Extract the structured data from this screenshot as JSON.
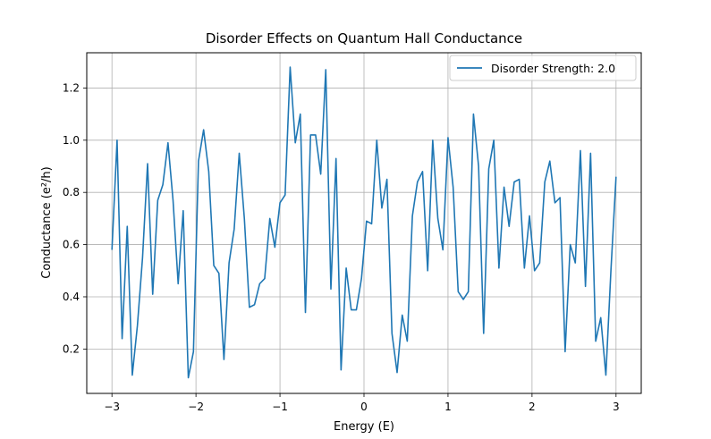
{
  "chart_data": {
    "type": "line",
    "title": "Disorder Effects on Quantum Hall Conductance",
    "xlabel": "Energy (E)",
    "ylabel": "Conductance (e²/h)",
    "xlim": [
      -3.3,
      3.3
    ],
    "ylim": [
      0.03,
      1.335
    ],
    "xticks": [
      -3,
      -2,
      -1,
      0,
      1,
      2,
      3
    ],
    "xtick_labels": [
      "−3",
      "−2",
      "−1",
      "0",
      "1",
      "2",
      "3"
    ],
    "yticks": [
      0.2,
      0.4,
      0.6,
      0.8,
      1.0,
      1.2
    ],
    "ytick_labels": [
      "0.2",
      "0.4",
      "0.6",
      "0.8",
      "1.0",
      "1.2"
    ],
    "grid": true,
    "legend_position": "top-right",
    "colors": {
      "series": "#1f77b4",
      "grid": "#b0b0b0",
      "axes": "#000000"
    },
    "series": [
      {
        "name": "Disorder Strength: 2.0",
        "x": [
          -3.0,
          -2.939,
          -2.879,
          -2.818,
          -2.758,
          -2.697,
          -2.636,
          -2.576,
          -2.515,
          -2.455,
          -2.394,
          -2.333,
          -2.273,
          -2.212,
          -2.152,
          -2.091,
          -2.03,
          -1.97,
          -1.909,
          -1.848,
          -1.788,
          -1.727,
          -1.667,
          -1.606,
          -1.545,
          -1.485,
          -1.424,
          -1.364,
          -1.303,
          -1.242,
          -1.182,
          -1.121,
          -1.061,
          -1.0,
          -0.939,
          -0.879,
          -0.818,
          -0.758,
          -0.697,
          -0.636,
          -0.576,
          -0.515,
          -0.455,
          -0.394,
          -0.333,
          -0.273,
          -0.212,
          -0.152,
          -0.091,
          -0.03,
          0.03,
          0.091,
          0.152,
          0.212,
          0.273,
          0.333,
          0.394,
          0.455,
          0.515,
          0.576,
          0.636,
          0.697,
          0.758,
          0.818,
          0.879,
          0.939,
          1.0,
          1.061,
          1.121,
          1.182,
          1.242,
          1.303,
          1.364,
          1.424,
          1.485,
          1.545,
          1.606,
          1.667,
          1.727,
          1.788,
          1.848,
          1.909,
          1.97,
          2.03,
          2.091,
          2.152,
          2.212,
          2.273,
          2.333,
          2.394,
          2.455,
          2.515,
          2.576,
          2.636,
          2.697,
          2.758,
          2.818,
          2.879,
          2.939,
          3.0
        ],
        "y": [
          0.58,
          1.0,
          0.24,
          0.67,
          0.1,
          0.29,
          0.55,
          0.91,
          0.41,
          0.77,
          0.83,
          0.99,
          0.77,
          0.45,
          0.73,
          0.09,
          0.19,
          0.92,
          1.04,
          0.88,
          0.52,
          0.49,
          0.16,
          0.53,
          0.66,
          0.95,
          0.7,
          0.36,
          0.37,
          0.45,
          0.47,
          0.7,
          0.59,
          0.76,
          0.79,
          1.28,
          0.99,
          1.1,
          0.34,
          1.02,
          1.02,
          0.87,
          1.27,
          0.43,
          0.93,
          0.12,
          0.51,
          0.35,
          0.35,
          0.47,
          0.69,
          0.68,
          1.0,
          0.74,
          0.85,
          0.26,
          0.11,
          0.33,
          0.23,
          0.71,
          0.84,
          0.88,
          0.5,
          1.0,
          0.7,
          0.58,
          1.01,
          0.82,
          0.42,
          0.39,
          0.42,
          1.1,
          0.9,
          0.26,
          0.89,
          1.0,
          0.51,
          0.82,
          0.67,
          0.84,
          0.85,
          0.51,
          0.71,
          0.5,
          0.53,
          0.84,
          0.92,
          0.76,
          0.78,
          0.19,
          0.6,
          0.53,
          0.96,
          0.44,
          0.95,
          0.23,
          0.32,
          0.1,
          0.5,
          0.86
        ]
      }
    ]
  }
}
